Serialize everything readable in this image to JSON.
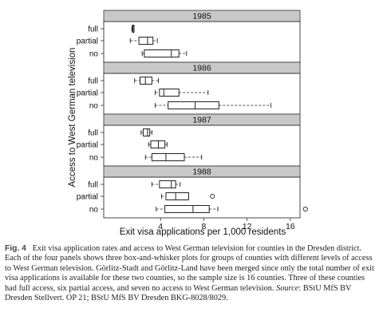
{
  "chart_data": {
    "type": "boxplot",
    "ylabel": "Access to West German television",
    "xlabel": "Exit visa applications per 1,000 residents",
    "xlim": [
      0,
      18.5
    ],
    "xticks": [
      4,
      8,
      12,
      16
    ],
    "groups": [
      "full",
      "partial",
      "no"
    ],
    "panels": [
      {
        "title": "1985",
        "boxes": [
          {
            "group": "full",
            "whisker_low": 1.35,
            "q1": 1.4,
            "median": 1.45,
            "q3": 1.5,
            "whisker_high": 1.55,
            "outliers": []
          },
          {
            "group": "partial",
            "whisker_low": 1.2,
            "q1": 2.0,
            "median": 2.8,
            "q3": 3.3,
            "whisker_high": 3.7,
            "outliers": []
          },
          {
            "group": "no",
            "whisker_low": 2.3,
            "q1": 2.5,
            "median": 5.0,
            "q3": 5.7,
            "whisker_high": 6.4,
            "outliers": []
          }
        ]
      },
      {
        "title": "1986",
        "boxes": [
          {
            "group": "full",
            "whisker_low": 1.6,
            "q1": 2.1,
            "median": 2.6,
            "q3": 3.2,
            "whisker_high": 3.8,
            "outliers": []
          },
          {
            "group": "partial",
            "whisker_low": 3.5,
            "q1": 3.9,
            "median": 4.3,
            "q3": 5.7,
            "whisker_high": 8.4,
            "outliers": []
          },
          {
            "group": "no",
            "whisker_low": 3.5,
            "q1": 4.7,
            "median": 7.2,
            "q3": 9.4,
            "whisker_high": 14.2,
            "outliers": []
          }
        ]
      },
      {
        "title": "1987",
        "boxes": [
          {
            "group": "full",
            "whisker_low": 2.2,
            "q1": 2.4,
            "median": 2.8,
            "q3": 3.0,
            "whisker_high": 3.2,
            "outliers": []
          },
          {
            "group": "partial",
            "whisker_low": 2.9,
            "q1": 3.1,
            "median": 3.8,
            "q3": 4.4,
            "whisker_high": 4.6,
            "outliers": []
          },
          {
            "group": "no",
            "whisker_low": 2.6,
            "q1": 3.2,
            "median": 4.5,
            "q3": 6.2,
            "whisker_high": 7.8,
            "outliers": []
          }
        ]
      },
      {
        "title": "1988",
        "boxes": [
          {
            "group": "full",
            "whisker_low": 3.2,
            "q1": 3.9,
            "median": 5.0,
            "q3": 5.4,
            "whisker_high": 5.8,
            "outliers": []
          },
          {
            "group": "partial",
            "whisker_low": 4.1,
            "q1": 4.5,
            "median": 5.4,
            "q3": 6.6,
            "whisker_high": 6.6,
            "outliers": [
              8.8
            ]
          },
          {
            "group": "no",
            "whisker_low": 3.6,
            "q1": 4.4,
            "median": 7.0,
            "q3": 8.5,
            "whisker_high": 9.3,
            "outliers": [
              17.4
            ]
          }
        ]
      }
    ],
    "grid": false,
    "legend": "none",
    "colors": {
      "strip": "#c8c8c8",
      "frame": "#333333",
      "box": "#222222"
    }
  },
  "caption": {
    "label": "Fig. 4",
    "text": "Exit visa application rates and access to West German television for counties in the Dresden district. Each of the four panels shows three box-and-whisker plots for groups of counties with different levels of access to West German television. Görlitz-Stadt and Görlitz-Land have been merged since only the total number of exit visa applications is available for these two counties, so the sample size is 16 counties. Three of these counties had full access, six partial access, and seven no access to West German television.",
    "source_label": "Source",
    "source_text": ": BStU MfS BV Dresden Stellvert. OP 21; BStU MfS BV Dresden BKG-8028/8029."
  }
}
